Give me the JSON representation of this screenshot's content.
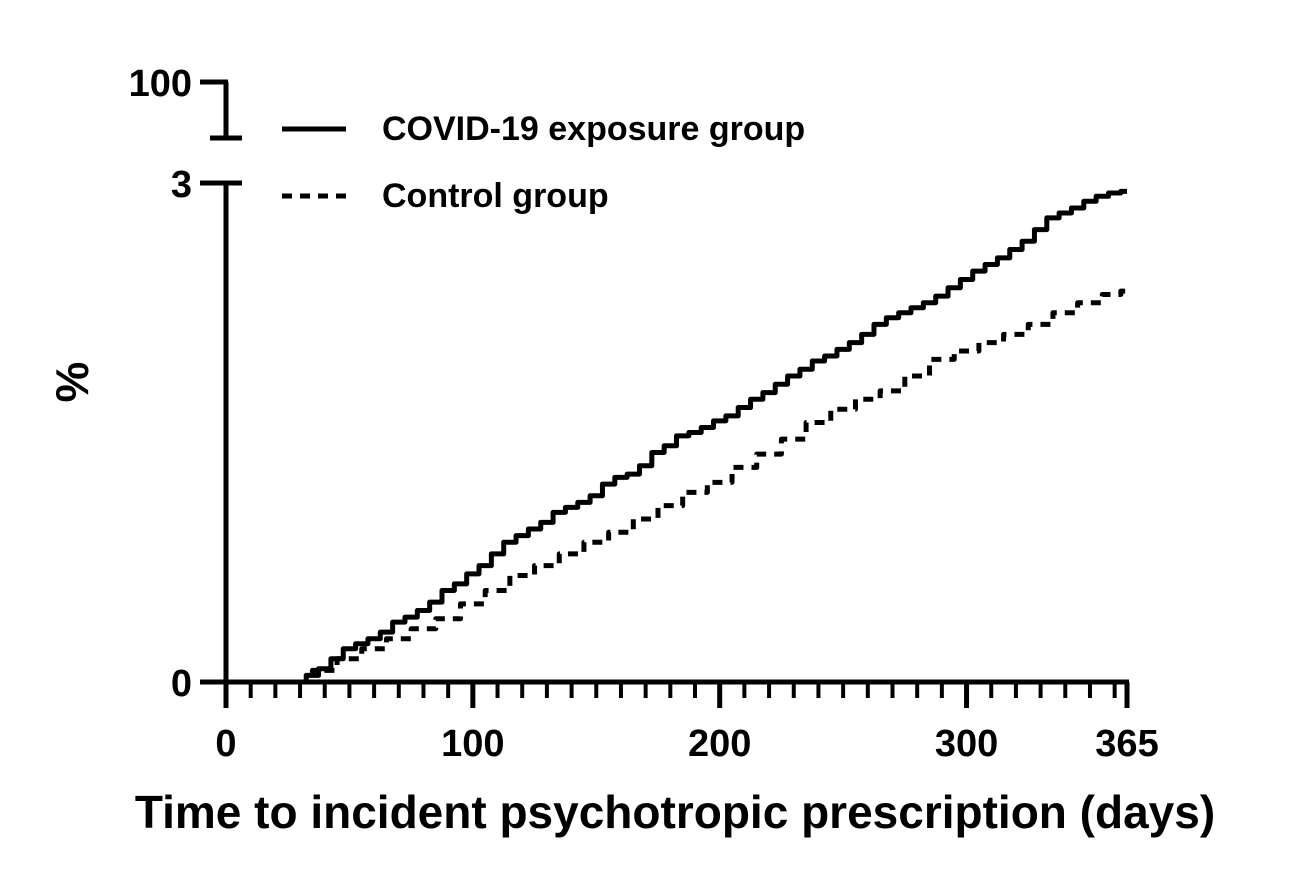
{
  "chart_data": {
    "type": "line",
    "title": "",
    "xlabel": "Time to incident psychotropic prescription (days)",
    "ylabel": "%",
    "xlim": [
      0,
      365
    ],
    "ylim": [
      0,
      3
    ],
    "y_axis_break": {
      "upper_tick": 100
    },
    "x_ticks": [
      0,
      100,
      200,
      300,
      365
    ],
    "x_tick_labels": [
      "0",
      "100",
      "200",
      "300",
      "365"
    ],
    "y_ticks": [
      0,
      3
    ],
    "y_tick_labels": [
      "0",
      "3"
    ],
    "y_break_tick_label": "100",
    "x_minor_tick_step": 10,
    "grid": false,
    "legend_position": "top-left",
    "series": [
      {
        "name": "COVID-19 exposure group",
        "line_style": "solid",
        "color": "#000000",
        "x": [
          30,
          35,
          40,
          45,
          50,
          55,
          60,
          65,
          70,
          75,
          80,
          85,
          90,
          95,
          100,
          105,
          110,
          115,
          120,
          125,
          130,
          135,
          140,
          145,
          150,
          155,
          160,
          165,
          170,
          175,
          180,
          185,
          190,
          195,
          200,
          205,
          210,
          215,
          220,
          225,
          230,
          235,
          240,
          245,
          250,
          255,
          260,
          265,
          270,
          275,
          280,
          285,
          290,
          295,
          300,
          305,
          310,
          315,
          320,
          325,
          330,
          335,
          340,
          345,
          350,
          355,
          360,
          365
        ],
        "y": [
          0.0,
          0.04,
          0.08,
          0.14,
          0.2,
          0.23,
          0.26,
          0.3,
          0.36,
          0.39,
          0.43,
          0.48,
          0.55,
          0.59,
          0.65,
          0.7,
          0.77,
          0.84,
          0.88,
          0.92,
          0.96,
          1.02,
          1.05,
          1.08,
          1.12,
          1.19,
          1.23,
          1.25,
          1.3,
          1.38,
          1.42,
          1.48,
          1.5,
          1.53,
          1.57,
          1.6,
          1.65,
          1.7,
          1.74,
          1.79,
          1.84,
          1.88,
          1.93,
          1.96,
          2.0,
          2.04,
          2.09,
          2.15,
          2.19,
          2.22,
          2.25,
          2.28,
          2.32,
          2.37,
          2.42,
          2.47,
          2.51,
          2.55,
          2.6,
          2.65,
          2.72,
          2.79,
          2.82,
          2.85,
          2.89,
          2.92,
          2.94,
          2.95
        ]
      },
      {
        "name": "Control group",
        "line_style": "dashed",
        "color": "#000000",
        "x": [
          30,
          40,
          50,
          60,
          70,
          80,
          90,
          100,
          110,
          120,
          130,
          140,
          150,
          160,
          170,
          180,
          190,
          200,
          210,
          220,
          230,
          240,
          250,
          260,
          270,
          280,
          290,
          300,
          310,
          320,
          330,
          340,
          350,
          360,
          365
        ],
        "y": [
          0.0,
          0.07,
          0.14,
          0.2,
          0.26,
          0.32,
          0.38,
          0.47,
          0.55,
          0.64,
          0.7,
          0.77,
          0.84,
          0.9,
          0.98,
          1.06,
          1.14,
          1.2,
          1.29,
          1.37,
          1.46,
          1.56,
          1.64,
          1.7,
          1.75,
          1.84,
          1.94,
          1.99,
          2.04,
          2.09,
          2.15,
          2.22,
          2.28,
          2.33,
          2.35
        ]
      }
    ]
  }
}
